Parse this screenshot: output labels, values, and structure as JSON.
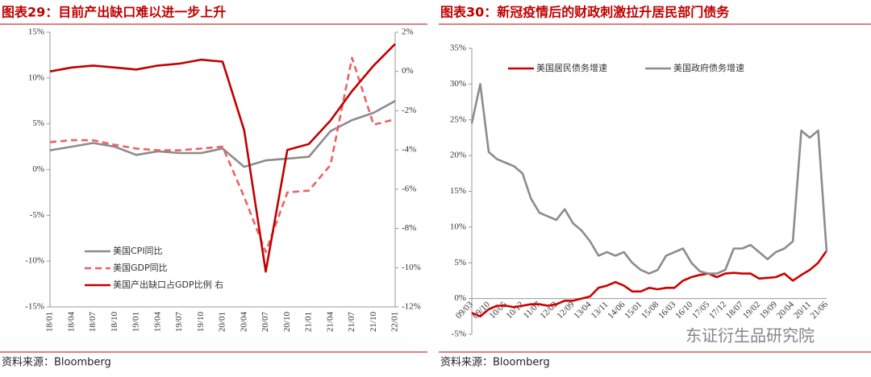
{
  "chart_data": [
    {
      "type": "line",
      "title": "图表29：目前产出缺口难以进一步上升",
      "source": "资料来源：Bloomberg",
      "categories": [
        "18/01",
        "18/04",
        "18/07",
        "18/10",
        "19/01",
        "19/04",
        "19/07",
        "19/10",
        "20/01",
        "20/04",
        "20/07",
        "20/10",
        "21/01",
        "21/04",
        "21/07",
        "21/10",
        "22/01"
      ],
      "ylim": [
        -15,
        15
      ],
      "yticks": [
        {
          "value": 15,
          "label": "15%"
        },
        {
          "value": 10,
          "label": "10%"
        },
        {
          "value": 5,
          "label": "5%"
        },
        {
          "value": 0,
          "label": "0%"
        },
        {
          "value": -5,
          "label": "-5%"
        },
        {
          "value": -10,
          "label": "-10%"
        },
        {
          "value": -15,
          "label": "-15%"
        }
      ],
      "y2lim": [
        -12,
        2
      ],
      "y2ticks": [
        {
          "value": 2,
          "label": "2%"
        },
        {
          "value": 0,
          "label": "0%"
        },
        {
          "value": -2,
          "label": "-2%"
        },
        {
          "value": -4,
          "label": "-4%"
        },
        {
          "value": -6,
          "label": "-6%"
        },
        {
          "value": -8,
          "label": "-8%"
        },
        {
          "value": -10,
          "label": "-10%"
        },
        {
          "value": -12,
          "label": "-12%"
        }
      ],
      "legend": "lower left",
      "grid": false,
      "series": [
        {
          "name": "美国CPI同比",
          "color": "#8c8c8c",
          "style": "solid",
          "values": [
            2.1,
            2.5,
            2.9,
            2.5,
            1.6,
            2.0,
            1.8,
            1.8,
            2.3,
            0.3,
            1.0,
            1.2,
            1.4,
            4.2,
            5.4,
            6.2,
            7.5
          ]
        },
        {
          "name": "美国GDP同比",
          "color": "#f06060",
          "style": "dashed",
          "values": [
            3.0,
            3.2,
            3.2,
            2.7,
            2.3,
            2.1,
            2.1,
            2.3,
            2.5,
            -3.0,
            -9.0,
            -2.5,
            -2.3,
            0.5,
            12.2,
            4.9,
            5.5
          ]
        },
        {
          "name": "美国产出缺口占GDP比例 右",
          "color": "#c00000",
          "style": "solid",
          "axis": "y2",
          "values": [
            0.0,
            0.2,
            0.3,
            0.2,
            0.1,
            0.3,
            0.4,
            0.6,
            0.5,
            -3.0,
            -10.2,
            -4.0,
            -3.7,
            -2.5,
            -1.0,
            0.3,
            1.4
          ]
        }
      ]
    },
    {
      "type": "line",
      "title": "图表30：新冠疫情后的财政刺激拉升居民部门债务",
      "source": "资料来源：Bloomberg",
      "watermark": "东证衍生品研究院",
      "categories": [
        "09/03",
        null,
        "09/10",
        null,
        "10/05",
        null,
        "10/12",
        null,
        "11/07",
        null,
        "12/02",
        null,
        "12/09",
        null,
        "13/04",
        null,
        "13/11",
        null,
        "14/06",
        null,
        "15/01",
        null,
        "15/08",
        null,
        "16/03",
        null,
        "16/10",
        null,
        "17/05",
        null,
        "17/12",
        null,
        "18/07",
        null,
        "19/02",
        null,
        "19/09",
        null,
        "20/04",
        null,
        "20/11",
        null,
        "21/06"
      ],
      "ylim": [
        -5,
        35
      ],
      "yticks": [
        {
          "value": 35,
          "label": "35%"
        },
        {
          "value": 30,
          "label": "30%"
        },
        {
          "value": 25,
          "label": "25%"
        },
        {
          "value": 20,
          "label": "20%"
        },
        {
          "value": 15,
          "label": "15%"
        },
        {
          "value": 10,
          "label": "10%"
        },
        {
          "value": 5,
          "label": "5%"
        },
        {
          "value": 0,
          "label": "0%"
        },
        {
          "value": -5,
          "label": "-5%"
        }
      ],
      "legend": "upper left",
      "grid": false,
      "series": [
        {
          "name": "美国居民债务增速",
          "color": "#cc0000",
          "style": "solid",
          "values": [
            -2,
            -2.5,
            -1.5,
            -1,
            -1,
            -1.2,
            -1,
            -0.8,
            -0.8,
            -1,
            -0.8,
            -0.3,
            -0.3,
            0,
            0.3,
            1.5,
            1.8,
            2.3,
            1.8,
            1,
            1,
            1.5,
            1.3,
            1.5,
            1.5,
            2.5,
            3,
            3.3,
            3.5,
            3,
            3.5,
            3.6,
            3.5,
            3.5,
            2.8,
            2.9,
            3,
            3.5,
            2.5,
            3.3,
            4,
            5,
            6.7
          ]
        },
        {
          "name": "美国政府债务增速",
          "color": "#8c8c8c",
          "style": "solid",
          "values": [
            24.5,
            30,
            20.5,
            19.5,
            19,
            18.5,
            17.5,
            14,
            12,
            11.5,
            11,
            12.5,
            10.5,
            9.5,
            8,
            6,
            6.5,
            6,
            6.5,
            5,
            4,
            3.5,
            4,
            6,
            6.5,
            7,
            5,
            3.8,
            3.5,
            3.5,
            4,
            7,
            7,
            7.5,
            6.5,
            5.5,
            6.5,
            7,
            8,
            23.5,
            22.5,
            23.5,
            6.5
          ]
        }
      ]
    }
  ]
}
